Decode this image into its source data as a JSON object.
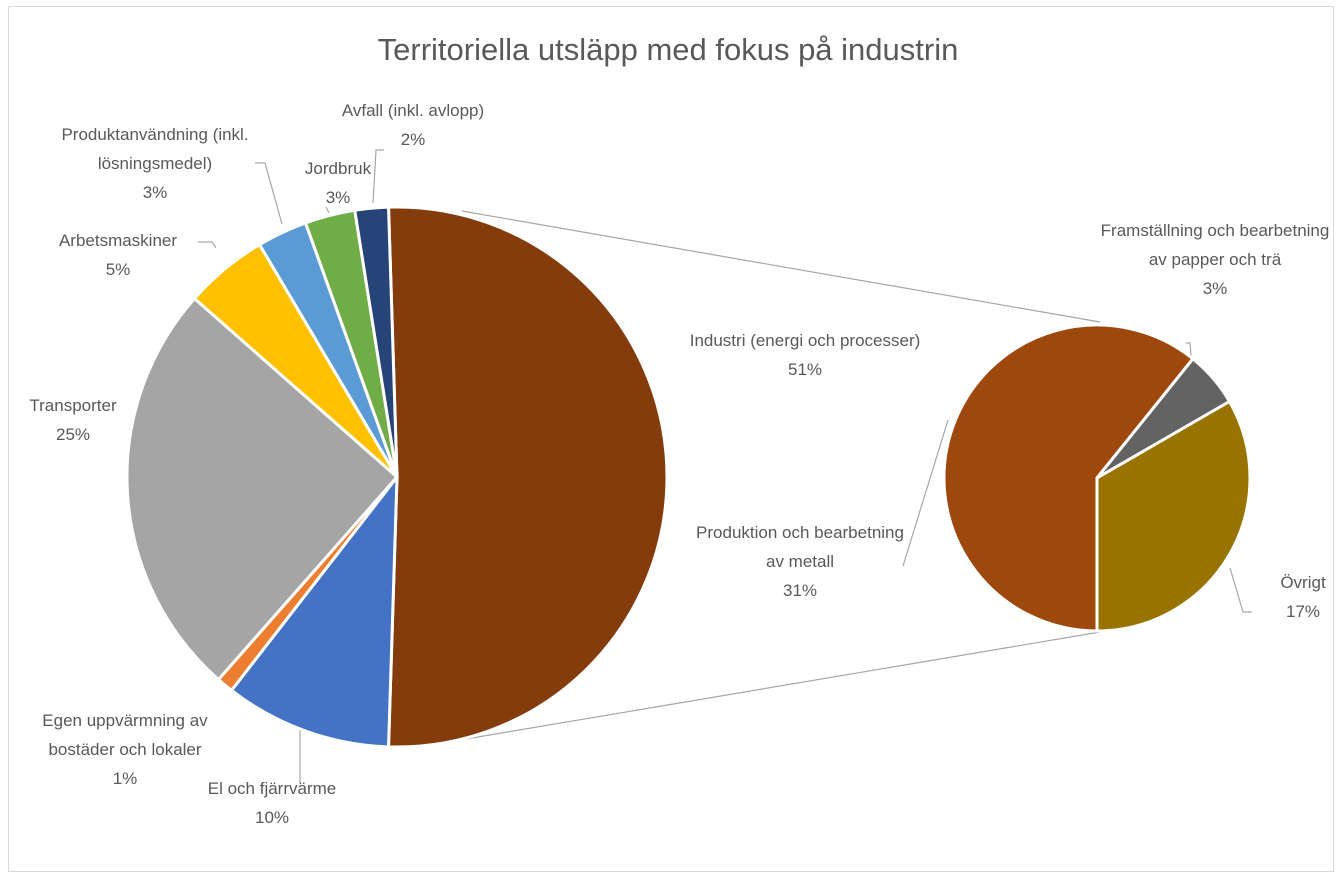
{
  "chart_data": {
    "type": "pie-of-pie",
    "title": "Territoriella utsläpp med fokus på industrin",
    "categories": [
      "Industri (energi och processer)",
      "El och fjärrvärme",
      "Egen uppvärmning av bostäder och lokaler",
      "Transporter",
      "Arbetsmaskiner",
      "Produktanvändning (inkl. lösningsmedel)",
      "Jordbruk",
      "Avfall (inkl. avlopp)"
    ],
    "values": [
      51,
      10,
      1,
      25,
      5,
      3,
      3,
      2
    ],
    "value_labels": [
      "51%",
      "10%",
      "1%",
      "25%",
      "5%",
      "3%",
      "3%",
      "2%"
    ],
    "colors": [
      "#843C0C",
      "#4472C4",
      "#ED7D31",
      "#A5A5A5",
      "#FFC000",
      "#5B9BD5",
      "#70AD47",
      "#264478"
    ],
    "secondary": {
      "categories": [
        "Produktion och bearbetning av metall",
        "Framställning och bearbetning av papper och trä",
        "Övrigt"
      ],
      "values": [
        31,
        3,
        17
      ],
      "value_labels": [
        "31%",
        "3%",
        "17%"
      ],
      "colors": [
        "#9E480E",
        "#636363",
        "#997300"
      ]
    }
  }
}
